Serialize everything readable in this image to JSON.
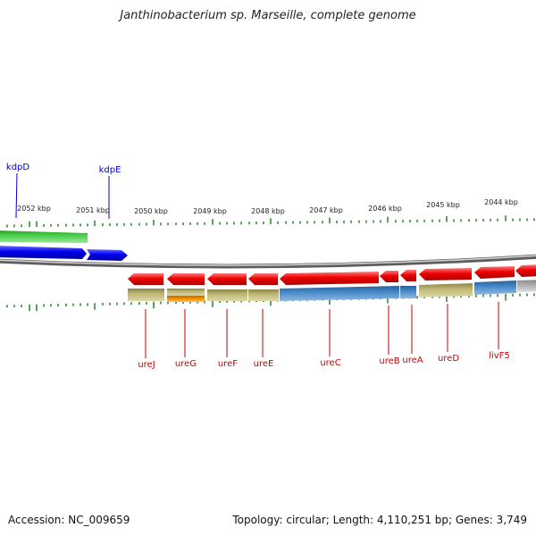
{
  "title": "Janthinobacterium sp. Marseille, complete genome",
  "footer": {
    "accession": "Accession: NC_009659",
    "summary": "Topology: circular; Length: 4,110,251 bp; Genes: 3,749"
  },
  "colors": {
    "tick": "#1a7a1a",
    "forward_label": "#0000cc",
    "reverse_label": "#cc0000",
    "backbone": "#7a7a7a",
    "red_gene": "#ee0000",
    "blue_gene": "#0000ee",
    "green_gene": "#22bb22",
    "khaki_feature": "#b5ad6a",
    "steel_feature": "#3f7fbd",
    "orange_feature": "#ef8a00"
  },
  "scale": {
    "labels": [
      "2052 kbp",
      "2051 kbp",
      "2050 kbp",
      "2049 kbp",
      "2048 kbp",
      "2047 kbp",
      "2046 kbp",
      "2045 kbp",
      "2044 kbp"
    ],
    "unit": "kbp"
  },
  "forward_genes": [
    {
      "name": "kdpD",
      "color": "green"
    },
    {
      "name": "kdpE",
      "color": "blue"
    }
  ],
  "reverse_genes": [
    {
      "name": "ureJ"
    },
    {
      "name": "ureG"
    },
    {
      "name": "ureF"
    },
    {
      "name": "ureE"
    },
    {
      "name": "ureC"
    },
    {
      "name": "ureB"
    },
    {
      "name": "ureA"
    },
    {
      "name": "ureD"
    },
    {
      "name": "livF5"
    }
  ]
}
